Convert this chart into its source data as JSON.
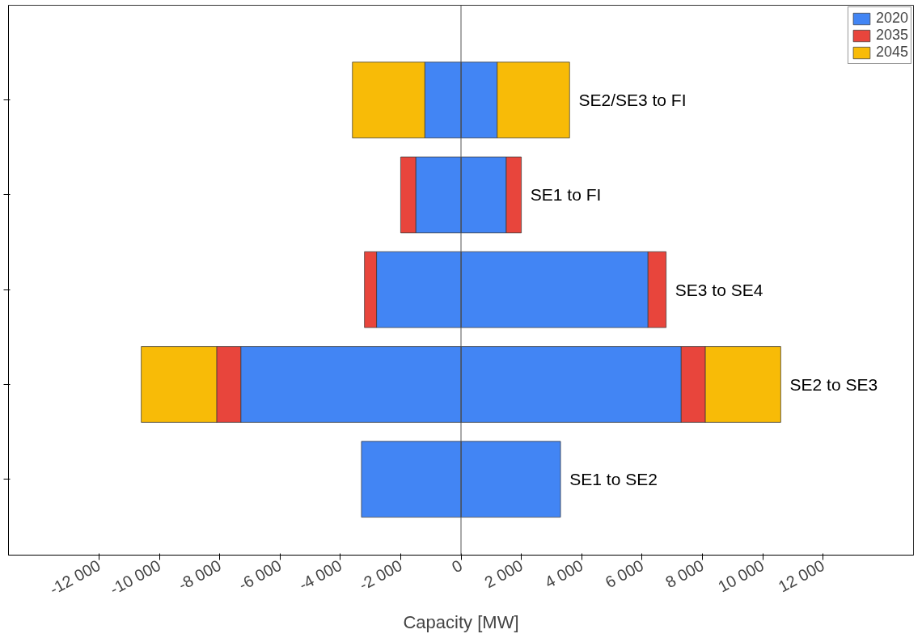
{
  "chart_data": {
    "type": "bar",
    "orientation": "horizontal",
    "stacked": true,
    "xlabel": "Capacity [MW]",
    "categories": [
      "SE2/SE3 to FI",
      "SE1 to FI",
      "SE3 to SE4",
      "SE2 to SE3",
      "SE1 to SE2"
    ],
    "series": [
      {
        "name": "2020",
        "color": "#4285f4",
        "values": [
          1200,
          1500,
          6200,
          7300,
          3300
        ]
      },
      {
        "name": "2035",
        "color": "#e8453c",
        "values": [
          0,
          500,
          600,
          800,
          0
        ]
      },
      {
        "name": "2045",
        "color": "#f8bb07",
        "values": [
          2400,
          0,
          0,
          2500,
          0
        ]
      },
      {
        "color": "#4285f4",
        "values": [
          -1200,
          -1500,
          -2800,
          -7300,
          -3300
        ]
      },
      {
        "color": "#e8453c",
        "values": [
          0,
          -500,
          -400,
          -800,
          0
        ]
      },
      {
        "color": "#f8bb07",
        "values": [
          -2400,
          0,
          0,
          -2500,
          0
        ]
      }
    ],
    "xlim": [
      -15000,
      15000
    ],
    "xticks": [
      {
        "value": -12000,
        "label": "-12 000"
      },
      {
        "value": -10000,
        "label": "-10 000"
      },
      {
        "value": -8000,
        "label": "-8 000"
      },
      {
        "value": -6000,
        "label": "-6 000"
      },
      {
        "value": -4000,
        "label": "-4 000"
      },
      {
        "value": -2000,
        "label": "-2 000"
      },
      0,
      {
        "value": 2000,
        "label": "2 000"
      },
      {
        "value": 4000,
        "label": "4 000"
      },
      {
        "value": 6000,
        "label": "6 000"
      },
      {
        "value": 8000,
        "label": "8 000"
      },
      {
        "value": 10000,
        "label": "10 000"
      },
      {
        "value": 12000,
        "label": "12 000"
      }
    ],
    "ref_lines": [
      {
        "axis": "x",
        "value": 0,
        "color": "#555555"
      }
    ],
    "legend": "top right",
    "grid": false
  }
}
